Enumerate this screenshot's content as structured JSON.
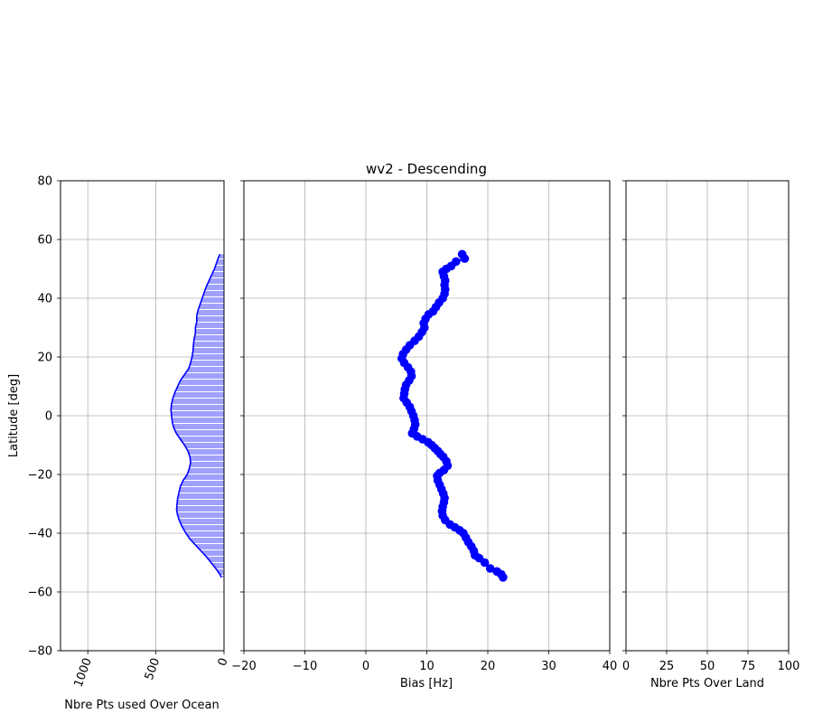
{
  "chart_data": [
    {
      "type": "area",
      "xlabel": "Nbre Pts used Over Ocean",
      "ylabel": "Latitude [deg]",
      "xlim": [
        1200,
        0
      ],
      "ylim": [
        -80,
        80
      ],
      "xticks": [
        "1000",
        "500",
        "0"
      ],
      "xtick_values": [
        1000,
        500,
        0
      ],
      "xtick_rotation_deg": 70,
      "yticks": [
        "80",
        "60",
        "40",
        "20",
        "0",
        "−20",
        "−40",
        "−60",
        "−80"
      ],
      "ytick_values": [
        80,
        60,
        40,
        20,
        0,
        -20,
        -40,
        -60,
        -80
      ],
      "grid": true,
      "color": "#0000ff",
      "fill_color": "#a0a0ff",
      "hatch": "horizontal white lines",
      "lat": [
        55,
        54,
        52,
        50,
        48,
        46,
        44,
        42,
        40,
        38,
        36,
        34,
        32,
        30,
        28,
        26,
        24,
        22,
        20,
        18,
        16,
        14,
        12,
        10,
        8,
        6,
        4,
        2,
        0,
        -2,
        -4,
        -6,
        -8,
        -10,
        -12,
        -14,
        -16,
        -18,
        -20,
        -22,
        -24,
        -26,
        -28,
        -30,
        -32,
        -34,
        -36,
        -38,
        -40,
        -42,
        -44,
        -46,
        -48,
        -50,
        -52,
        -54,
        -55
      ],
      "count": [
        30,
        40,
        55,
        70,
        90,
        110,
        130,
        145,
        160,
        175,
        190,
        200,
        200,
        210,
        210,
        220,
        225,
        228,
        235,
        245,
        260,
        290,
        320,
        340,
        360,
        375,
        385,
        390,
        385,
        380,
        370,
        350,
        320,
        290,
        265,
        250,
        245,
        255,
        270,
        300,
        320,
        330,
        340,
        345,
        348,
        340,
        325,
        305,
        280,
        250,
        210,
        170,
        130,
        95,
        60,
        30,
        20
      ]
    },
    {
      "type": "scatter",
      "title": "wv2 - Descending",
      "xlabel": "Bias [Hz]",
      "xlim": [
        -20,
        40
      ],
      "ylim": [
        -80,
        80
      ],
      "xticks": [
        "−20",
        "−10",
        "0",
        "10",
        "20",
        "30",
        "40"
      ],
      "xtick_values": [
        -20,
        -10,
        0,
        10,
        20,
        30,
        40
      ],
      "grid": true,
      "color": "#0000ff",
      "points": [
        [
          15.8,
          55
        ],
        [
          16.2,
          53.5
        ],
        [
          14.8,
          52.5
        ],
        [
          14.0,
          51.0
        ],
        [
          13.2,
          50.0
        ],
        [
          12.6,
          49.0
        ],
        [
          12.8,
          47.5
        ],
        [
          13.0,
          46.0
        ],
        [
          12.9,
          44.5
        ],
        [
          13.0,
          43.0
        ],
        [
          12.9,
          41.5
        ],
        [
          12.6,
          40.0
        ],
        [
          12.0,
          38.5
        ],
        [
          11.5,
          37.0
        ],
        [
          11.0,
          35.5
        ],
        [
          10.3,
          34.5
        ],
        [
          9.8,
          33.0
        ],
        [
          9.5,
          31.5
        ],
        [
          9.6,
          30.0
        ],
        [
          9.2,
          28.5
        ],
        [
          8.7,
          27.0
        ],
        [
          8.0,
          25.5
        ],
        [
          7.2,
          24.0
        ],
        [
          6.6,
          22.5
        ],
        [
          6.1,
          21.0
        ],
        [
          5.9,
          19.5
        ],
        [
          6.3,
          18.0
        ],
        [
          6.9,
          16.5
        ],
        [
          7.4,
          15.0
        ],
        [
          7.5,
          13.5
        ],
        [
          7.1,
          12.0
        ],
        [
          6.6,
          10.5
        ],
        [
          6.4,
          9.0
        ],
        [
          6.3,
          7.5
        ],
        [
          6.2,
          6.0
        ],
        [
          6.7,
          4.5
        ],
        [
          7.2,
          3.0
        ],
        [
          7.5,
          1.5
        ],
        [
          7.8,
          0.0
        ],
        [
          8.0,
          -1.5
        ],
        [
          8.1,
          -3.0
        ],
        [
          7.9,
          -4.5
        ],
        [
          7.6,
          -6.0
        ],
        [
          8.4,
          -7.0
        ],
        [
          9.3,
          -8.0
        ],
        [
          10.2,
          -9.0
        ],
        [
          10.8,
          -10.0
        ],
        [
          11.3,
          -11.0
        ],
        [
          11.8,
          -12.0
        ],
        [
          12.2,
          -13.0
        ],
        [
          12.7,
          -14.0
        ],
        [
          13.2,
          -15.5
        ],
        [
          13.4,
          -17.0
        ],
        [
          12.8,
          -18.5
        ],
        [
          12.1,
          -19.5
        ],
        [
          11.7,
          -20.5
        ],
        [
          11.8,
          -22.0
        ],
        [
          12.1,
          -23.5
        ],
        [
          12.4,
          -25.0
        ],
        [
          12.7,
          -26.5
        ],
        [
          12.9,
          -28.0
        ],
        [
          12.8,
          -29.5
        ],
        [
          12.6,
          -31.0
        ],
        [
          12.5,
          -32.5
        ],
        [
          12.6,
          -34.0
        ],
        [
          13.0,
          -35.5
        ],
        [
          13.8,
          -37.0
        ],
        [
          14.6,
          -38.0
        ],
        [
          15.4,
          -39.0
        ],
        [
          16.0,
          -40.0
        ],
        [
          16.4,
          -41.5
        ],
        [
          16.8,
          -43.0
        ],
        [
          17.3,
          -44.5
        ],
        [
          17.7,
          -46.0
        ],
        [
          17.9,
          -47.5
        ],
        [
          18.6,
          -48.5
        ],
        [
          19.5,
          -50.0
        ],
        [
          20.4,
          -52.0
        ],
        [
          21.5,
          -53.0
        ],
        [
          22.2,
          -54.0
        ],
        [
          22.5,
          -55.0
        ]
      ]
    },
    {
      "type": "line",
      "xlabel": "Nbre Pts Over Land",
      "xlim": [
        0,
        100
      ],
      "ylim": [
        -80,
        80
      ],
      "xticks": [
        "0",
        "25",
        "50",
        "75",
        "100"
      ],
      "xtick_values": [
        0,
        25,
        50,
        75,
        100
      ],
      "grid": true,
      "points": []
    }
  ]
}
